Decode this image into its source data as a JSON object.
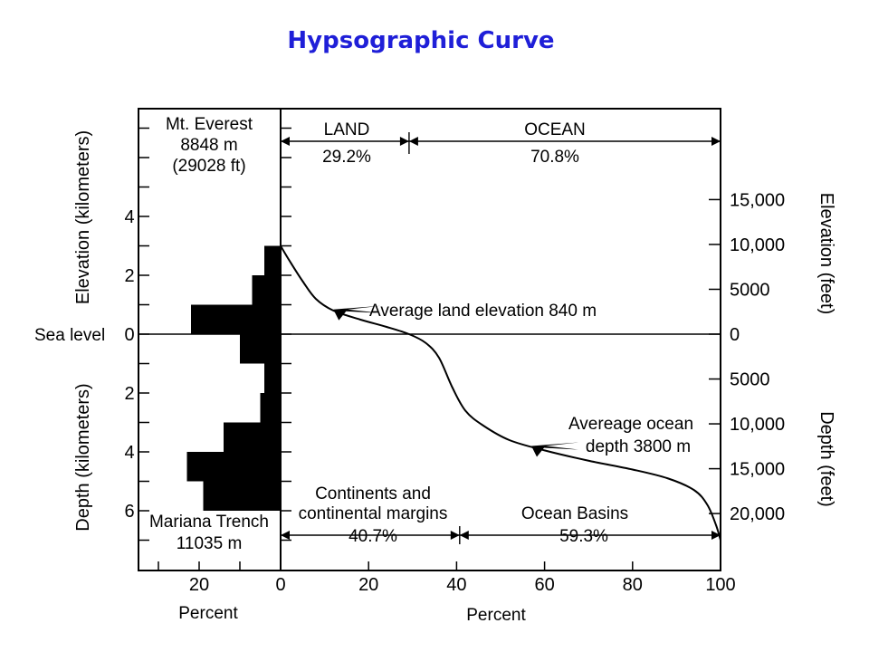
{
  "title": "Hypsographic Curve",
  "chart_data": {
    "type": "line",
    "title": "Hypsographic Curve",
    "left_panel": {
      "ylabel_elevation": "Elevation (kilometers)",
      "ylabel_depth": "Depth (kilometers)",
      "sea_level_label": "Sea level",
      "xlabel": "Percent",
      "xticks": [
        20,
        0
      ],
      "y_ticks_km": [
        {
          "km": 4,
          "label": "4"
        },
        {
          "km": 2,
          "label": "2"
        },
        {
          "km": 0,
          "label": "0"
        },
        {
          "km": -2,
          "label": "2"
        },
        {
          "km": -4,
          "label": "4"
        },
        {
          "km": -6,
          "label": "6"
        }
      ],
      "bars": [
        {
          "from_km": 2,
          "to_km": 3,
          "percent": 4
        },
        {
          "from_km": 1,
          "to_km": 2,
          "percent": 7
        },
        {
          "from_km": 0,
          "to_km": 1,
          "percent": 22
        },
        {
          "from_km": -1,
          "to_km": 0,
          "percent": 10
        },
        {
          "from_km": -2,
          "to_km": -1,
          "percent": 4
        },
        {
          "from_km": -3,
          "to_km": -2,
          "percent": 5
        },
        {
          "from_km": -4,
          "to_km": -3,
          "percent": 14
        },
        {
          "from_km": -5,
          "to_km": -4,
          "percent": 23
        },
        {
          "from_km": -6,
          "to_km": -5,
          "percent": 19
        }
      ],
      "everest": [
        "Mt. Everest",
        "8848 m",
        "(29028 ft)"
      ],
      "trench": [
        "Mariana Trench",
        "11035 m"
      ]
    },
    "right_panel": {
      "xlabel": "Percent",
      "xticks": [
        0,
        20,
        40,
        60,
        80,
        100
      ],
      "ylabel_elevation": "Elevation (feet)",
      "ylabel_depth": "Depth (feet)",
      "y_ticks_ft": [
        {
          "ft": 15000,
          "label": "15,000"
        },
        {
          "ft": 10000,
          "label": "10,000"
        },
        {
          "ft": 5000,
          "label": "5000"
        },
        {
          "ft": 0,
          "label": "0"
        },
        {
          "ft": -5000,
          "label": "5000"
        },
        {
          "ft": -10000,
          "label": "10,000"
        },
        {
          "ft": -15000,
          "label": "15,000"
        },
        {
          "ft": -20000,
          "label": "20,000"
        }
      ],
      "curve": [
        {
          "x": 0,
          "y": 3.0
        },
        {
          "x": 2,
          "y": 2.5
        },
        {
          "x": 5,
          "y": 1.8
        },
        {
          "x": 8,
          "y": 1.2
        },
        {
          "x": 12,
          "y": 0.8
        },
        {
          "x": 18,
          "y": 0.5
        },
        {
          "x": 24,
          "y": 0.25
        },
        {
          "x": 29.2,
          "y": 0.0
        },
        {
          "x": 33,
          "y": -0.3
        },
        {
          "x": 36,
          "y": -0.8
        },
        {
          "x": 39,
          "y": -1.8
        },
        {
          "x": 42,
          "y": -2.6
        },
        {
          "x": 46,
          "y": -3.1
        },
        {
          "x": 52,
          "y": -3.6
        },
        {
          "x": 60,
          "y": -3.95
        },
        {
          "x": 70,
          "y": -4.3
        },
        {
          "x": 80,
          "y": -4.6
        },
        {
          "x": 88,
          "y": -4.9
        },
        {
          "x": 94,
          "y": -5.3
        },
        {
          "x": 97,
          "y": -5.8
        },
        {
          "x": 99,
          "y": -6.5
        },
        {
          "x": 100,
          "y": -7.0
        }
      ],
      "land": {
        "label": "LAND",
        "percent": "29.2%",
        "value": 29.2
      },
      "ocean": {
        "label": "OCEAN",
        "percent": "70.8%",
        "value": 70.8
      },
      "continents": {
        "label": [
          "Continents and",
          "continental margins"
        ],
        "percent": "40.7%",
        "value": 40.7
      },
      "basins": {
        "label": "Ocean Basins",
        "percent": "59.3%",
        "value": 59.3
      },
      "avg_land_label": "Average land elevation 840 m",
      "avg_land_point": {
        "x": 12,
        "y": 0.84
      },
      "avg_ocean_label": [
        "Avereage ocean",
        "depth 3800 m"
      ],
      "avg_ocean_point": {
        "x": 57,
        "y": -3.8
      }
    }
  }
}
